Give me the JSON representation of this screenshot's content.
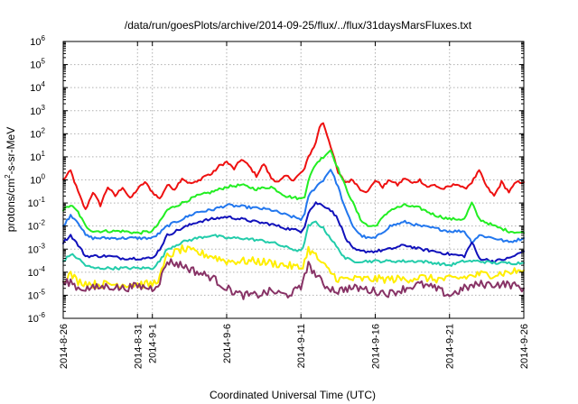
{
  "chart_data": {
    "type": "line",
    "title": "/data/run/goesPlots/archive/2014-09-25/flux/../flux/31daysMarsFluxes.txt",
    "xlabel": "Coordinated Universal Time (UTC)",
    "ylabel": {
      "pre": "protons/cm",
      "sup": "2",
      "post": "-s-sr-MeV"
    },
    "yscale": "log",
    "ylim": [
      "1e-6",
      "1e6"
    ],
    "y_ticks": [
      {
        "base": "10",
        "exp": "6",
        "value": 1000000.0
      },
      {
        "base": "10",
        "exp": "5",
        "value": 100000.0
      },
      {
        "base": "10",
        "exp": "4",
        "value": 10000.0
      },
      {
        "base": "10",
        "exp": "3",
        "value": 1000.0
      },
      {
        "base": "10",
        "exp": "2",
        "value": 100.0
      },
      {
        "base": "10",
        "exp": "1",
        "value": 10.0
      },
      {
        "base": "10",
        "exp": "0",
        "value": 1
      },
      {
        "base": "10",
        "exp": "-1",
        "value": 0.1
      },
      {
        "base": "10",
        "exp": "-2",
        "value": 0.01
      },
      {
        "base": "10",
        "exp": "-3",
        "value": 0.001
      },
      {
        "base": "10",
        "exp": "-4",
        "value": 0.0001
      },
      {
        "base": "10",
        "exp": "-5",
        "value": 1e-05
      },
      {
        "base": "10",
        "exp": "-6",
        "value": 1e-06
      }
    ],
    "xlim": [
      "2014-08-26",
      "2014-09-26"
    ],
    "x_ticks": [
      {
        "label": "2014-8-26",
        "date": "2014-08-26"
      },
      {
        "label": "2014-8-31",
        "date": "2014-08-31"
      },
      {
        "label": "2014-9-1",
        "date": "2014-09-01"
      },
      {
        "label": "2014-9-6",
        "date": "2014-09-06"
      },
      {
        "label": "2014-9-11",
        "date": "2014-09-11"
      },
      {
        "label": "2014-9-16",
        "date": "2014-09-16"
      },
      {
        "label": "2014-9-21",
        "date": "2014-09-21"
      },
      {
        "label": "2014-9-26",
        "date": "2014-09-26"
      }
    ],
    "grid": true,
    "series": [
      {
        "color": "#ee1111",
        "x": [
          "2014-08-26",
          "2014-08-26T12:00",
          "2014-08-27",
          "2014-08-27T12:00",
          "2014-08-28",
          "2014-08-28T12:00",
          "2014-08-29",
          "2014-08-29T12:00",
          "2014-08-30",
          "2014-08-30T12:00",
          "2014-08-31",
          "2014-08-31T12:00",
          "2014-09-01",
          "2014-09-01T12:00",
          "2014-09-02",
          "2014-09-02T12:00",
          "2014-09-03",
          "2014-09-03T12:00",
          "2014-09-04",
          "2014-09-04T12:00",
          "2014-09-05",
          "2014-09-05T12:00",
          "2014-09-06",
          "2014-09-06T12:00",
          "2014-09-07",
          "2014-09-07T12:00",
          "2014-09-08",
          "2014-09-08T12:00",
          "2014-09-09",
          "2014-09-09T12:00",
          "2014-09-10",
          "2014-09-10T12:00",
          "2014-09-11",
          "2014-09-11T06:00",
          "2014-09-11T12:00",
          "2014-09-12",
          "2014-09-12T06:00",
          "2014-09-12T12:00",
          "2014-09-13",
          "2014-09-13T12:00",
          "2014-09-14",
          "2014-09-14T12:00",
          "2014-09-15",
          "2014-09-15T12:00",
          "2014-09-16",
          "2014-09-16T12:00",
          "2014-09-17",
          "2014-09-17T12:00",
          "2014-09-18",
          "2014-09-18T12:00",
          "2014-09-19",
          "2014-09-19T12:00",
          "2014-09-20",
          "2014-09-20T12:00",
          "2014-09-21",
          "2014-09-21T12:00",
          "2014-09-22",
          "2014-09-22T12:00",
          "2014-09-23",
          "2014-09-23T12:00",
          "2014-09-24",
          "2014-09-24T12:00",
          "2014-09-25",
          "2014-09-25T12:00",
          "2014-09-26"
        ],
        "y": [
          1.0,
          2.5,
          0.3,
          0.05,
          0.3,
          0.08,
          0.5,
          0.2,
          0.5,
          0.15,
          0.4,
          0.8,
          0.3,
          0.15,
          0.6,
          0.4,
          1.2,
          0.7,
          0.8,
          1.5,
          1.8,
          4.0,
          6.0,
          3.0,
          8.0,
          4.0,
          1.5,
          5.0,
          1.2,
          0.8,
          1.5,
          1.0,
          2.0,
          3.0,
          10.0,
          40.0,
          200.0,
          300.0,
          30.0,
          2.0,
          0.8,
          1.0,
          0.4,
          0.3,
          1.0,
          0.5,
          1.0,
          0.6,
          1.2,
          0.7,
          1.0,
          0.5,
          0.6,
          0.4,
          0.5,
          0.7,
          0.4,
          0.8,
          2.5,
          0.5,
          0.2,
          0.8,
          0.3,
          0.8,
          0.8
        ]
      },
      {
        "color": "#22ee22",
        "x": [
          "2014-08-26",
          "2014-08-26T12:00",
          "2014-08-27",
          "2014-08-27T12:00",
          "2014-08-28",
          "2014-08-29",
          "2014-08-30",
          "2014-08-31",
          "2014-09-01",
          "2014-09-01T12:00",
          "2014-09-02",
          "2014-09-03",
          "2014-09-04",
          "2014-09-05",
          "2014-09-06",
          "2014-09-07",
          "2014-09-08",
          "2014-09-09",
          "2014-09-10",
          "2014-09-11",
          "2014-09-11T06:00",
          "2014-09-11T12:00",
          "2014-09-12",
          "2014-09-12T12:00",
          "2014-09-13",
          "2014-09-13T12:00",
          "2014-09-14",
          "2014-09-14T12:00",
          "2014-09-15",
          "2014-09-15T12:00",
          "2014-09-16",
          "2014-09-17",
          "2014-09-18",
          "2014-09-19",
          "2014-09-20",
          "2014-09-21",
          "2014-09-22",
          "2014-09-22T12:00",
          "2014-09-23",
          "2014-09-24",
          "2014-09-25",
          "2014-09-26"
        ],
        "y": [
          0.05,
          0.08,
          0.04,
          0.01,
          0.006,
          0.006,
          0.006,
          0.005,
          0.006,
          0.015,
          0.05,
          0.1,
          0.2,
          0.3,
          0.5,
          0.6,
          0.4,
          0.5,
          0.2,
          0.15,
          0.2,
          1.0,
          5.0,
          10.0,
          20.0,
          3.0,
          0.5,
          0.1,
          0.02,
          0.01,
          0.01,
          0.05,
          0.08,
          0.06,
          0.03,
          0.02,
          0.02,
          0.1,
          0.02,
          0.01,
          0.006,
          0.005
        ]
      },
      {
        "color": "#2277ee",
        "x": [
          "2014-08-26",
          "2014-08-26T12:00",
          "2014-08-27",
          "2014-08-27T12:00",
          "2014-08-28",
          "2014-08-29",
          "2014-08-30",
          "2014-08-31",
          "2014-09-01",
          "2014-09-01T12:00",
          "2014-09-02",
          "2014-09-03",
          "2014-09-04",
          "2014-09-05",
          "2014-09-06",
          "2014-09-07",
          "2014-09-08",
          "2014-09-09",
          "2014-09-10",
          "2014-09-11",
          "2014-09-11T06:00",
          "2014-09-11T12:00",
          "2014-09-12",
          "2014-09-12T12:00",
          "2014-09-13",
          "2014-09-13T12:00",
          "2014-09-14",
          "2014-09-14T12:00",
          "2014-09-15",
          "2014-09-15T12:00",
          "2014-09-16",
          "2014-09-17",
          "2014-09-18",
          "2014-09-19",
          "2014-09-20",
          "2014-09-21",
          "2014-09-22",
          "2014-09-22T12:00",
          "2014-09-23",
          "2014-09-24",
          "2014-09-25",
          "2014-09-26"
        ],
        "y": [
          0.01,
          0.03,
          0.015,
          0.004,
          0.003,
          0.003,
          0.003,
          0.003,
          0.003,
          0.005,
          0.01,
          0.02,
          0.04,
          0.05,
          0.08,
          0.07,
          0.06,
          0.05,
          0.03,
          0.02,
          0.03,
          0.2,
          0.5,
          1.0,
          3.0,
          0.5,
          0.05,
          0.01,
          0.004,
          0.003,
          0.003,
          0.01,
          0.015,
          0.01,
          0.008,
          0.006,
          0.006,
          0.002,
          0.004,
          0.003,
          0.002,
          0.003
        ]
      },
      {
        "color": "#1111bb",
        "x": [
          "2014-08-26",
          "2014-08-26T12:00",
          "2014-08-27",
          "2014-08-27T12:00",
          "2014-08-28",
          "2014-08-29",
          "2014-08-30",
          "2014-08-31",
          "2014-09-01",
          "2014-09-01T12:00",
          "2014-09-02",
          "2014-09-03",
          "2014-09-04",
          "2014-09-05",
          "2014-09-06",
          "2014-09-07",
          "2014-09-08",
          "2014-09-09",
          "2014-09-10",
          "2014-09-11",
          "2014-09-11T06:00",
          "2014-09-11T12:00",
          "2014-09-12",
          "2014-09-12T12:00",
          "2014-09-13",
          "2014-09-13T12:00",
          "2014-09-14",
          "2014-09-14T12:00",
          "2014-09-15",
          "2014-09-15T12:00",
          "2014-09-16",
          "2014-09-17",
          "2014-09-18",
          "2014-09-19",
          "2014-09-20",
          "2014-09-21",
          "2014-09-22",
          "2014-09-22T12:00",
          "2014-09-23",
          "2014-09-24",
          "2014-09-25",
          "2014-09-26"
        ],
        "y": [
          0.002,
          0.004,
          0.0015,
          0.0005,
          0.0005,
          0.0005,
          0.0004,
          0.0004,
          0.0004,
          0.001,
          0.004,
          0.008,
          0.015,
          0.02,
          0.025,
          0.02,
          0.015,
          0.012,
          0.008,
          0.006,
          0.01,
          0.04,
          0.1,
          0.08,
          0.05,
          0.02,
          0.003,
          0.001,
          0.0008,
          0.0008,
          0.0008,
          0.001,
          0.0015,
          0.001,
          0.0008,
          0.0006,
          0.0005,
          0.002,
          0.0004,
          0.0003,
          0.0004,
          0.0008
        ]
      },
      {
        "color": "#22ccaa",
        "x": [
          "2014-08-26",
          "2014-08-26T12:00",
          "2014-08-27",
          "2014-08-27T12:00",
          "2014-08-28",
          "2014-08-29",
          "2014-08-30",
          "2014-08-31",
          "2014-09-01",
          "2014-09-01T12:00",
          "2014-09-02",
          "2014-09-03",
          "2014-09-04",
          "2014-09-05",
          "2014-09-06",
          "2014-09-07",
          "2014-09-08",
          "2014-09-09",
          "2014-09-10",
          "2014-09-11",
          "2014-09-11T06:00",
          "2014-09-11T12:00",
          "2014-09-12",
          "2014-09-12T12:00",
          "2014-09-13",
          "2014-09-13T12:00",
          "2014-09-14",
          "2014-09-14T12:00",
          "2014-09-15",
          "2014-09-15T12:00",
          "2014-09-16",
          "2014-09-17",
          "2014-09-18",
          "2014-09-19",
          "2014-09-20",
          "2014-09-21",
          "2014-09-22",
          "2014-09-23",
          "2014-09-24",
          "2014-09-25",
          "2014-09-26"
        ],
        "y": [
          0.0003,
          0.0006,
          0.0004,
          0.0002,
          0.00015,
          0.00015,
          0.00015,
          0.00015,
          0.00015,
          0.0003,
          0.001,
          0.002,
          0.003,
          0.004,
          0.003,
          0.003,
          0.0025,
          0.002,
          0.0012,
          0.0008,
          0.002,
          0.01,
          0.015,
          0.008,
          0.003,
          0.001,
          0.0004,
          0.0003,
          0.0003,
          0.0003,
          0.0003,
          0.0003,
          0.0003,
          0.0003,
          0.00025,
          0.0002,
          0.0003,
          0.0003,
          0.00025,
          0.00025,
          0.00025
        ]
      },
      {
        "color": "#ffee00",
        "x": [
          "2014-08-26",
          "2014-08-26T12:00",
          "2014-08-27",
          "2014-08-28",
          "2014-08-29",
          "2014-08-30",
          "2014-08-31",
          "2014-09-01",
          "2014-09-01T12:00",
          "2014-09-02",
          "2014-09-03",
          "2014-09-04",
          "2014-09-05",
          "2014-09-06",
          "2014-09-07",
          "2014-09-08",
          "2014-09-09",
          "2014-09-10",
          "2014-09-11",
          "2014-09-11T06:00",
          "2014-09-11T12:00",
          "2014-09-12",
          "2014-09-12T12:00",
          "2014-09-13",
          "2014-09-13T12:00",
          "2014-09-14",
          "2014-09-15",
          "2014-09-16",
          "2014-09-17",
          "2014-09-18",
          "2014-09-19",
          "2014-09-20",
          "2014-09-21",
          "2014-09-22",
          "2014-09-23",
          "2014-09-24",
          "2014-09-25",
          "2014-09-26"
        ],
        "y": [
          5e-05,
          8e-05,
          4e-05,
          3e-05,
          3e-05,
          3e-05,
          3e-05,
          3e-05,
          6e-05,
          0.0005,
          0.001,
          0.0007,
          0.0005,
          0.0003,
          0.0003,
          0.0003,
          0.00025,
          0.0002,
          0.00015,
          0.0003,
          0.001,
          0.0005,
          0.0002,
          0.0001,
          5e-05,
          5e-05,
          5e-05,
          5e-05,
          5e-05,
          5e-05,
          6e-05,
          5e-05,
          5e-05,
          6e-05,
          8e-05,
          8e-05,
          0.0001,
          0.00012
        ]
      },
      {
        "color": "#883366",
        "x": [
          "2014-08-26",
          "2014-08-26T12:00",
          "2014-08-27",
          "2014-08-28",
          "2014-08-29",
          "2014-08-30",
          "2014-08-31",
          "2014-09-01",
          "2014-09-01T12:00",
          "2014-09-02",
          "2014-09-03",
          "2014-09-04",
          "2014-09-05",
          "2014-09-06",
          "2014-09-07",
          "2014-09-08",
          "2014-09-09",
          "2014-09-10",
          "2014-09-11",
          "2014-09-11T06:00",
          "2014-09-11T12:00",
          "2014-09-12",
          "2014-09-12T12:00",
          "2014-09-13",
          "2014-09-13T12:00",
          "2014-09-14",
          "2014-09-15",
          "2014-09-16",
          "2014-09-17",
          "2014-09-18",
          "2014-09-19",
          "2014-09-20",
          "2014-09-21",
          "2014-09-22",
          "2014-09-23",
          "2014-09-24",
          "2014-09-25",
          "2014-09-26"
        ],
        "y": [
          3e-05,
          4e-05,
          2e-05,
          2e-05,
          2.5e-05,
          2e-05,
          2.5e-05,
          2e-05,
          4e-05,
          0.0003,
          0.0002,
          0.0001,
          6e-05,
          2e-05,
          1e-05,
          1e-05,
          1.5e-05,
          1e-05,
          2e-05,
          0.0001,
          0.0002,
          8e-05,
          3e-05,
          2e-05,
          1.5e-05,
          2e-05,
          2e-05,
          1.5e-05,
          1.2e-05,
          2e-05,
          3e-05,
          2e-05,
          1e-05,
          2e-05,
          3e-05,
          3e-05,
          3e-05,
          2e-05
        ]
      }
    ]
  }
}
